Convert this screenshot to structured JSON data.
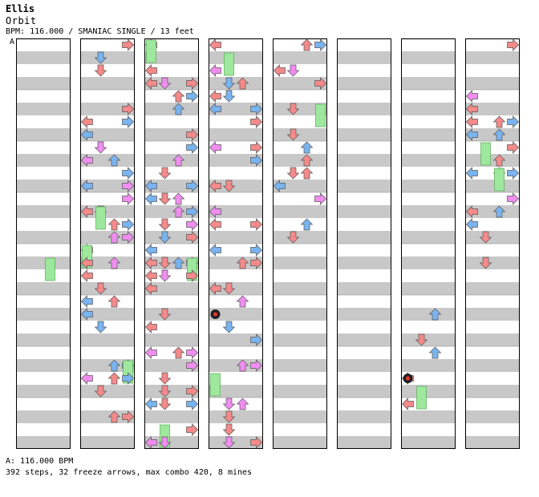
{
  "header": {
    "artist": "Ellis",
    "title": "Orbit",
    "info": "BPM: 116.000 / SMANIAC SINGLE / 13 feet",
    "bpm_marker": "A"
  },
  "footer": {
    "bpm_legend": "A: 116.000 BPM",
    "stats": "392 steps, 32 freeze arrows, max combo 420, 8 mines"
  },
  "chart_data": {
    "type": "step-chart",
    "columns_count": 8,
    "measures_per_column": 8,
    "lanes": [
      "left",
      "down",
      "up",
      "right"
    ],
    "colors": {
      "quarter": "#f48a8a",
      "eighth": "#7ab4f0",
      "sixteenth": "#f08ef0",
      "freeze": "#9ee89e",
      "mine": "#222222",
      "stripe": "#c8c8c8"
    },
    "empty_columns": [
      5
    ],
    "steps": 392,
    "freeze_arrows": 32,
    "max_combo": 420,
    "mines": 8
  }
}
